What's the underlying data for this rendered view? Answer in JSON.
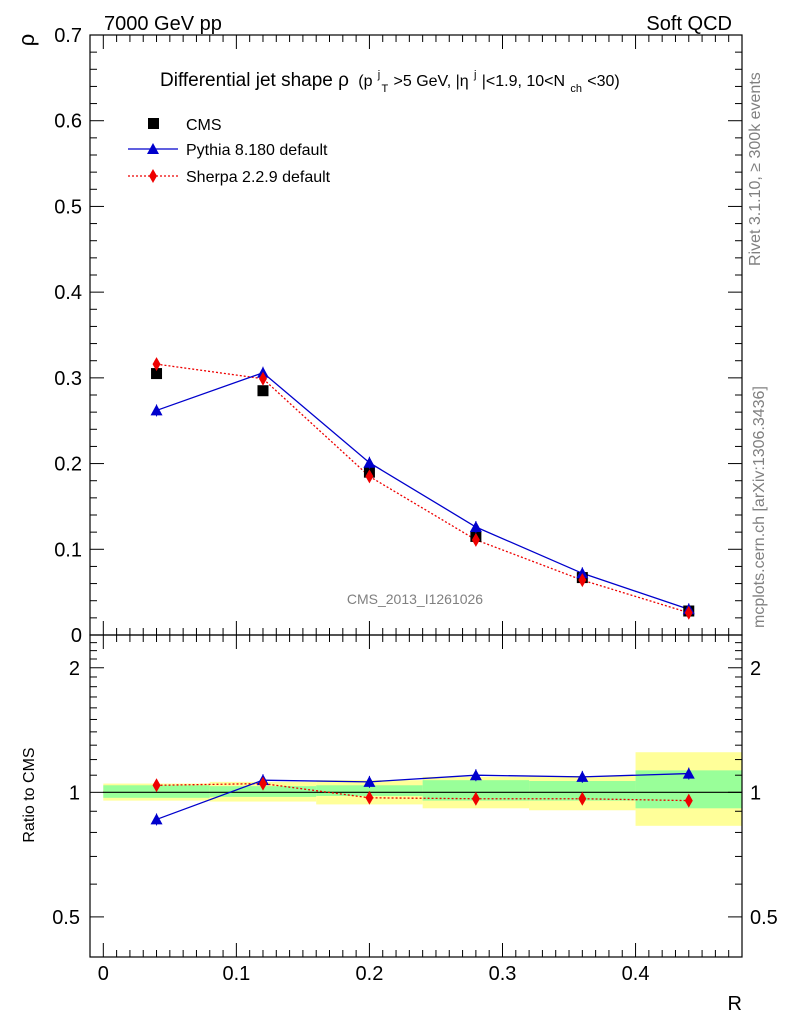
{
  "header": {
    "left": "7000 GeV pp",
    "right": "Soft QCD"
  },
  "side_labels": {
    "rivet": "Rivet 3.1.10, ≥ 300k events",
    "mcplots": "mcplots.cern.ch [arXiv:1306.3436]"
  },
  "watermark": "CMS_2013_I1261026",
  "chart_data": {
    "type": "line",
    "title": "Differential jet shape ρ (p_T^j>5 GeV, |η^j|<1.9, 10<N_ch<30)",
    "title_parts": {
      "main": "Differential jet shape",
      "rho": "ρ",
      "open": "(p",
      "T": "T",
      "j": "j",
      "mid1": ">5 GeV, |η",
      "mid2": "|<1.9, 10<N",
      "ch": "ch",
      "close": "<30)"
    },
    "xlabel": "R",
    "ylabel": "ρ",
    "ratio_ylabel": "Ratio to CMS",
    "xlim": [
      -0.01,
      0.48
    ],
    "ylim": [
      0,
      0.7
    ],
    "ratio_ylim_log": [
      0.4,
      2.4
    ],
    "x_ticks": [
      "0",
      "0.1",
      "0.2",
      "0.3",
      "0.4"
    ],
    "y_ticks": [
      "0",
      "0.1",
      "0.2",
      "0.3",
      "0.4",
      "0.5",
      "0.6",
      "0.7"
    ],
    "ratio_ticks": [
      "0.5",
      "1",
      "2"
    ],
    "x": [
      0.04,
      0.12,
      0.2,
      0.28,
      0.36,
      0.44
    ],
    "bin_edges": [
      0.0,
      0.08,
      0.16,
      0.24,
      0.32,
      0.4,
      0.48
    ],
    "series": [
      {
        "name": "CMS",
        "values": [
          0.305,
          0.285,
          0.19,
          0.115,
          0.067,
          0.028
        ],
        "color": "#000000",
        "marker": "square"
      },
      {
        "name": "Pythia 8.180 default",
        "values": [
          0.262,
          0.306,
          0.201,
          0.126,
          0.072,
          0.03
        ],
        "color": "#0000cc",
        "marker": "triangle"
      },
      {
        "name": "Sherpa 2.2.9 default",
        "values": [
          0.316,
          0.299,
          0.185,
          0.111,
          0.064,
          0.026
        ],
        "color": "#ee0000",
        "marker": "diamond"
      }
    ],
    "ratio": {
      "pythia": [
        0.86,
        1.07,
        1.06,
        1.1,
        1.09,
        1.11
      ],
      "sherpa": [
        1.04,
        1.05,
        0.97,
        0.965,
        0.965,
        0.955
      ],
      "band_stat": [
        [
          0.97,
          1.04
        ],
        [
          0.975,
          1.035
        ],
        [
          0.98,
          1.04
        ],
        [
          0.955,
          1.07
        ],
        [
          0.955,
          1.065
        ],
        [
          0.915,
          1.13
        ]
      ],
      "band_total": [
        [
          0.955,
          1.05
        ],
        [
          0.95,
          1.06
        ],
        [
          0.935,
          1.07
        ],
        [
          0.915,
          1.09
        ],
        [
          0.905,
          1.095
        ],
        [
          0.83,
          1.25
        ]
      ]
    }
  }
}
